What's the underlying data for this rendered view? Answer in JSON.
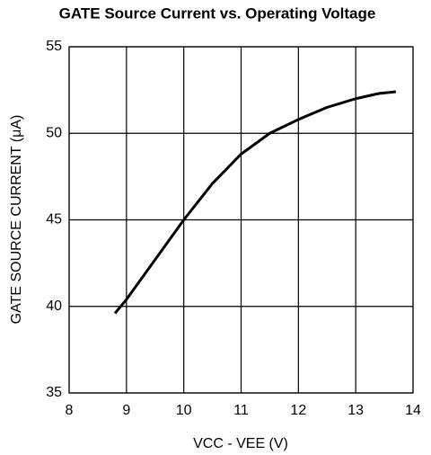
{
  "chart_data": {
    "type": "line",
    "title": "GATE Source Current vs. Operating Voltage",
    "x_label": "VCC - VEE (V)",
    "y_label": "GATE SOURCE CURRENT (μA)",
    "series": [
      {
        "name": "GATE Source Current",
        "color": "#000000",
        "x": [
          8.8,
          9.0,
          9.5,
          10.0,
          10.5,
          11.0,
          11.5,
          12.0,
          12.5,
          13.0,
          13.4,
          13.7
        ],
        "values": [
          39.6,
          40.4,
          42.7,
          45.0,
          47.1,
          48.8,
          50.0,
          50.8,
          51.5,
          52.0,
          52.3,
          52.4
        ]
      }
    ],
    "xlim": [
      8,
      14
    ],
    "xticks": [
      8,
      9,
      10,
      11,
      12,
      13,
      14
    ],
    "ylim": [
      35,
      55
    ],
    "yticks": [
      35,
      40,
      45,
      50,
      55
    ],
    "grid": true
  }
}
